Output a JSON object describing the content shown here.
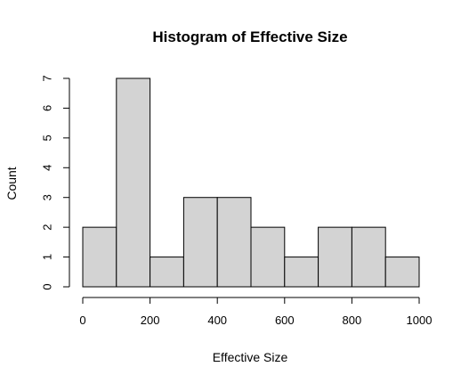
{
  "chart_data": {
    "type": "bar",
    "title": "Histogram of Effective Size",
    "xlabel": "Effective Size",
    "ylabel": "Count",
    "bins": [
      {
        "start": 0,
        "end": 100,
        "count": 2
      },
      {
        "start": 100,
        "end": 200,
        "count": 7
      },
      {
        "start": 200,
        "end": 300,
        "count": 1
      },
      {
        "start": 300,
        "end": 400,
        "count": 3
      },
      {
        "start": 400,
        "end": 500,
        "count": 3
      },
      {
        "start": 500,
        "end": 600,
        "count": 2
      },
      {
        "start": 600,
        "end": 700,
        "count": 1
      },
      {
        "start": 700,
        "end": 800,
        "count": 2
      },
      {
        "start": 800,
        "end": 900,
        "count": 2
      },
      {
        "start": 900,
        "end": 1000,
        "count": 1
      }
    ],
    "xlim": [
      0,
      1000
    ],
    "ylim": [
      0,
      7
    ],
    "x_ticks": [
      0,
      200,
      400,
      600,
      800,
      1000
    ],
    "y_ticks": [
      0,
      1,
      2,
      3,
      4,
      5,
      6,
      7
    ],
    "bar_color": "#d3d3d3",
    "grid": false,
    "legend": "none"
  }
}
